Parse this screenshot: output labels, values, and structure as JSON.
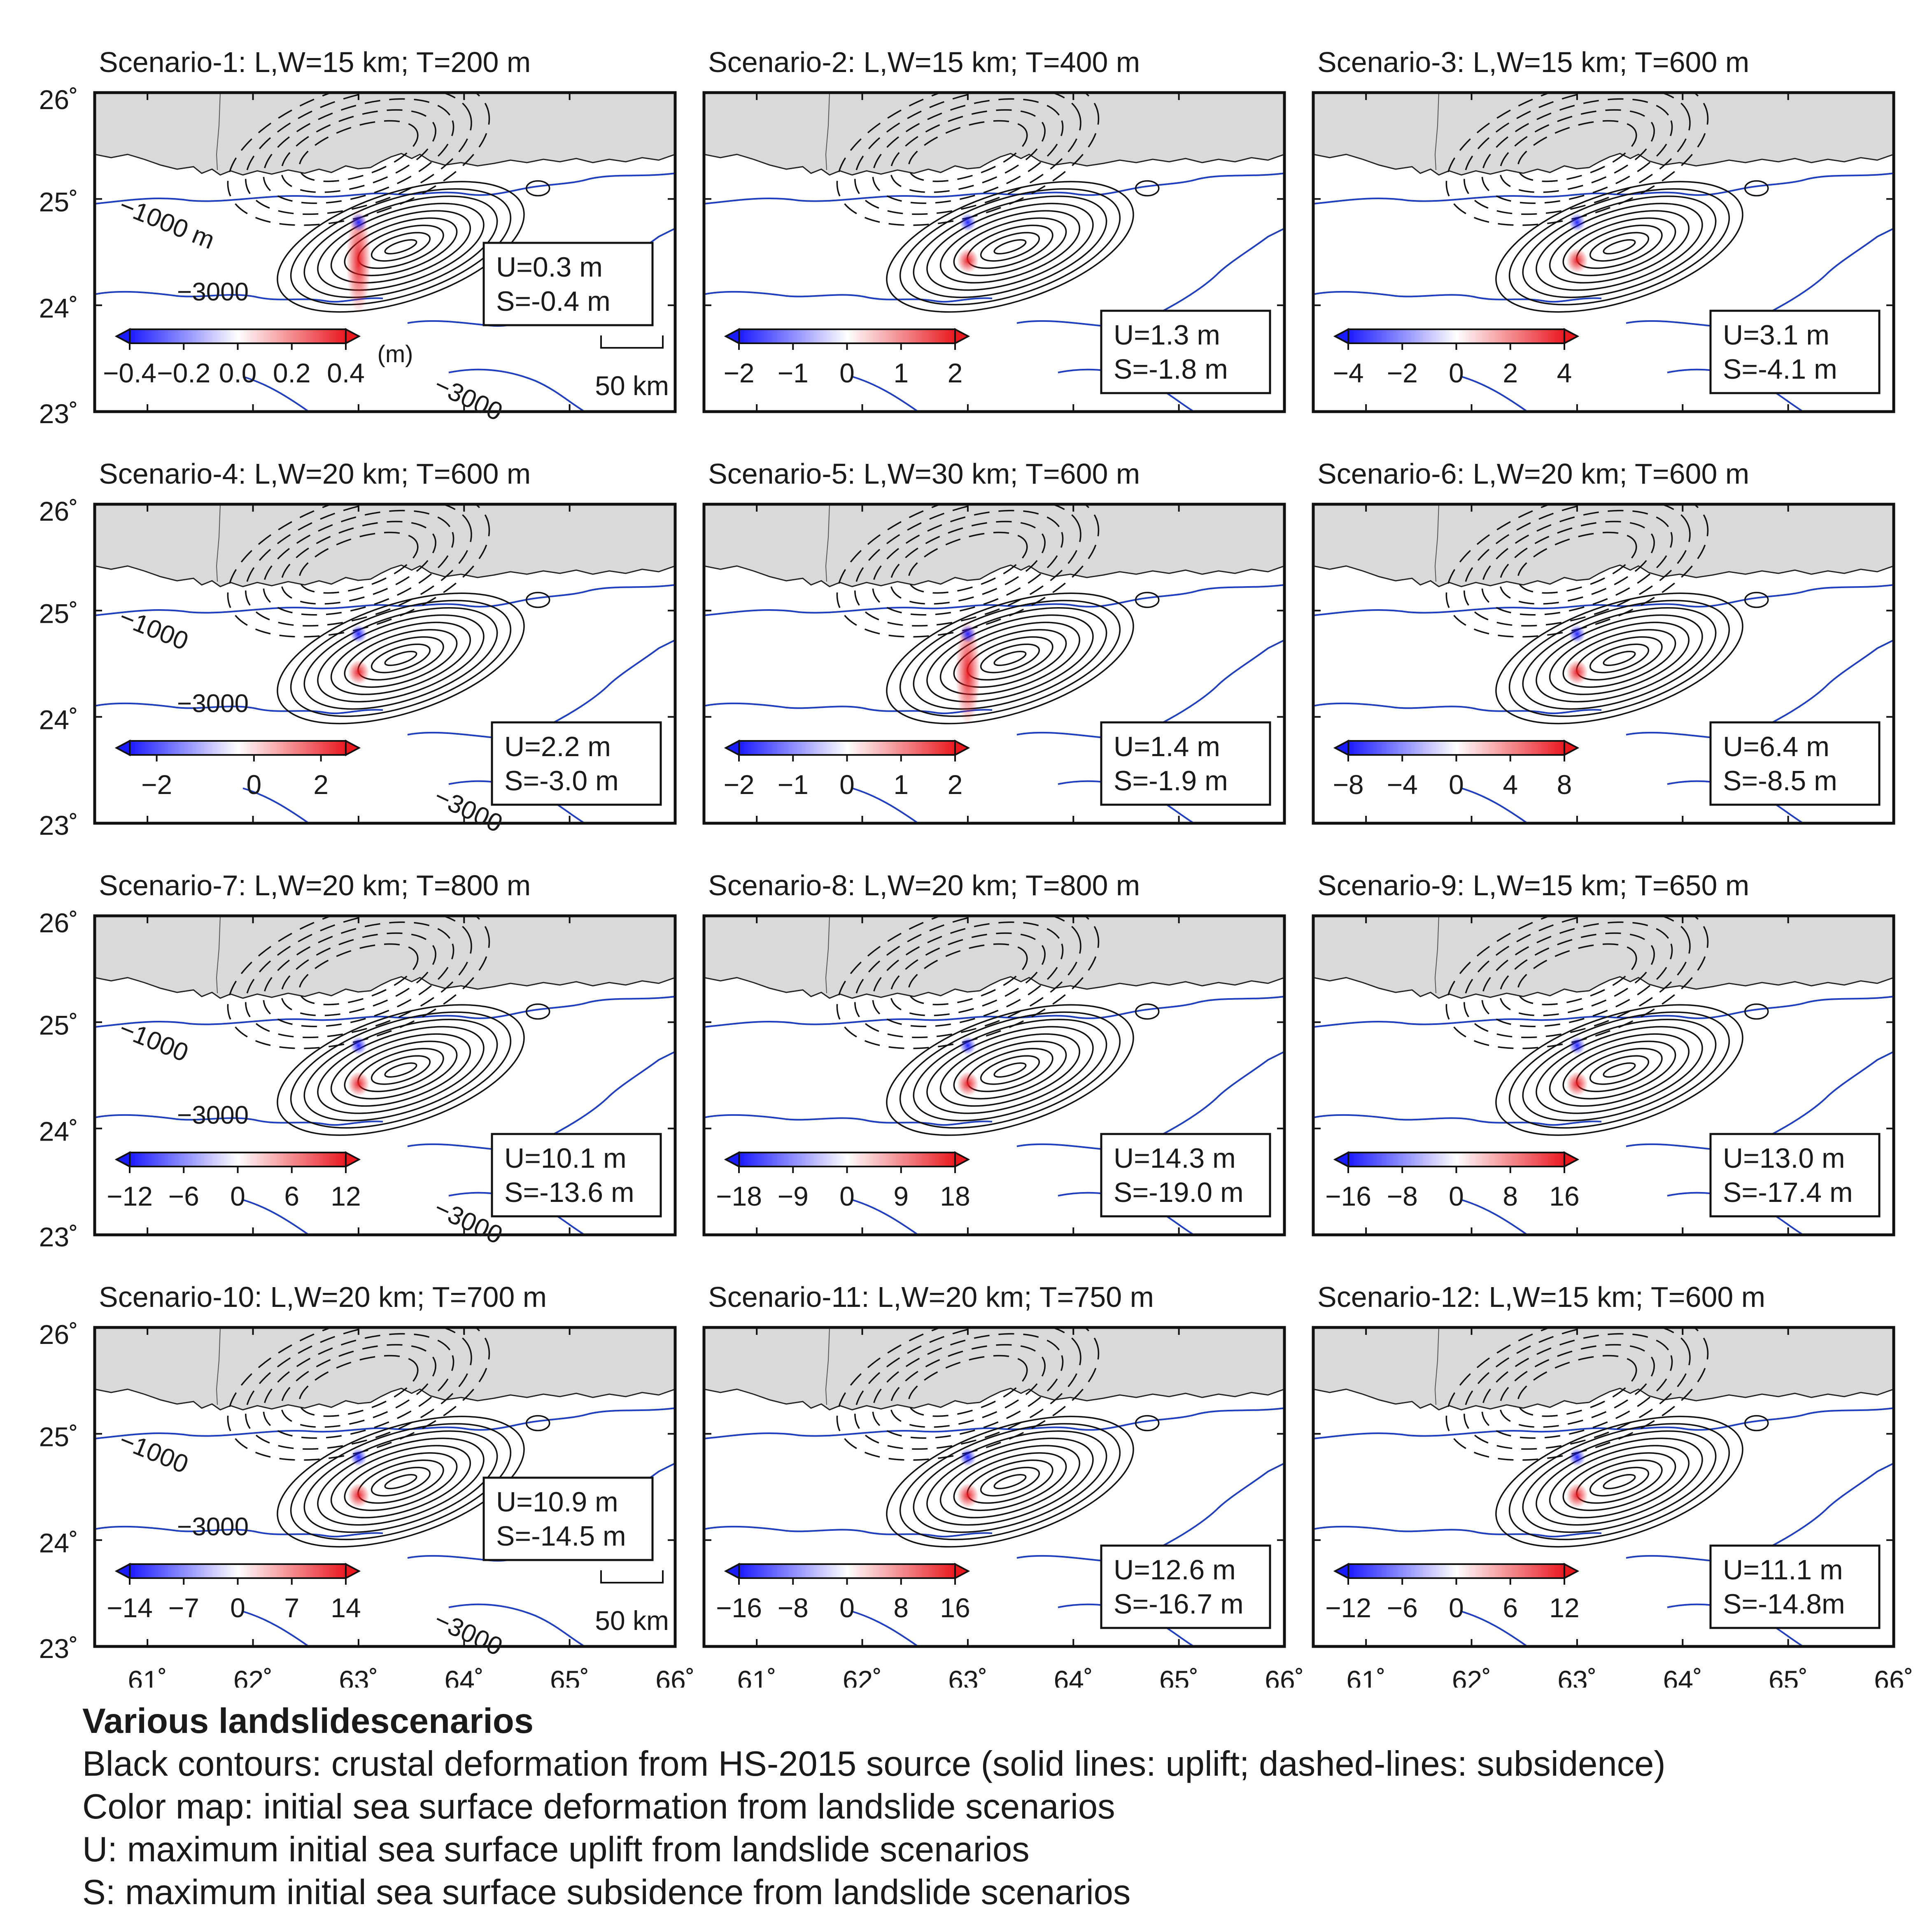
{
  "axes": {
    "lat_ticks": [
      {
        "value": 26,
        "label": "26˚"
      },
      {
        "value": 25,
        "label": "25˚"
      },
      {
        "value": 24,
        "label": "24˚"
      },
      {
        "value": 23,
        "label": "23˚"
      }
    ],
    "lon_ticks": [
      {
        "value": 61,
        "label": "61˚"
      },
      {
        "value": 62,
        "label": "62˚"
      },
      {
        "value": 63,
        "label": "63˚"
      },
      {
        "value": 64,
        "label": "64˚"
      },
      {
        "value": 65,
        "label": "65˚"
      },
      {
        "value": 66,
        "label": "66˚"
      }
    ],
    "lon_range": [
      60.5,
      66
    ],
    "lat_range": [
      23,
      26
    ]
  },
  "colors": {
    "land": "#d9d9d9",
    "bathymetry": "#1f3fbf",
    "contour": "#111111",
    "uplift": "#e8191f",
    "subsidence": "#1a1aff"
  },
  "panels": [
    {
      "title": "Scenario-1: L,W=15 km; T=200 m",
      "ticks": [
        "−0.4",
        "−0.2",
        "0.0",
        "0.2",
        "0.4"
      ],
      "unit": "(m)",
      "U": "U=0.3 m",
      "S": "S=-0.4 m",
      "depth_labels": [
        "−1000 m",
        "−3000",
        "−3000"
      ],
      "scale": "50 km"
    },
    {
      "title": "Scenario-2: L,W=15 km; T=400 m",
      "ticks": [
        "−2",
        "−1",
        "0",
        "1",
        "2"
      ],
      "U": "U=1.3 m",
      "S": "S=-1.8 m"
    },
    {
      "title": "Scenario-3: L,W=15 km; T=600 m",
      "ticks": [
        "−4",
        "−2",
        "0",
        "2",
        "4"
      ],
      "U": "U=3.1 m",
      "S": "S=-4.1 m"
    },
    {
      "title": "Scenario-4: L,W=20 km; T=600 m",
      "ticks": [
        "−2",
        "0",
        "2"
      ],
      "U": "U=2.2 m",
      "S": "S=-3.0 m",
      "depth_labels": [
        "−1000",
        "−3000",
        "−3000"
      ]
    },
    {
      "title": "Scenario-5: L,W=30 km; T=600 m",
      "ticks": [
        "−2",
        "−1",
        "0",
        "1",
        "2"
      ],
      "U": "U=1.4 m",
      "S": "S=-1.9 m"
    },
    {
      "title": "Scenario-6: L,W=20 km; T=600 m",
      "ticks": [
        "−8",
        "−4",
        "0",
        "4",
        "8"
      ],
      "U": "U=6.4 m",
      "S": "S=-8.5 m"
    },
    {
      "title": "Scenario-7: L,W=20 km; T=800 m",
      "ticks": [
        "−12",
        "−6",
        "0",
        "6",
        "12"
      ],
      "U": "U=10.1 m",
      "S": "S=-13.6 m",
      "depth_labels": [
        "−1000",
        "−3000",
        "−3000"
      ]
    },
    {
      "title": "Scenario-8: L,W=20 km; T=800 m",
      "ticks": [
        "−18",
        "−9",
        "0",
        "9",
        "18"
      ],
      "U": "U=14.3 m",
      "S": "S=-19.0 m"
    },
    {
      "title": "Scenario-9: L,W=15 km; T=650 m",
      "ticks": [
        "−16",
        "−8",
        "0",
        "8",
        "16"
      ],
      "U": "U=13.0 m",
      "S": "S=-17.4 m"
    },
    {
      "title": "Scenario-10: L,W=20 km; T=700 m",
      "ticks": [
        "−14",
        "−7",
        "0",
        "7",
        "14"
      ],
      "U": "U=10.9 m",
      "S": "S=-14.5 m",
      "depth_labels": [
        "−1000",
        "−3000",
        "−3000"
      ],
      "scale": "50 km"
    },
    {
      "title": "Scenario-11: L,W=20 km; T=750 m",
      "ticks": [
        "−16",
        "−8",
        "0",
        "8",
        "16"
      ],
      "U": "U=12.6 m",
      "S": "S=-16.7 m"
    },
    {
      "title": "Scenario-12: L,W=15 km; T=600 m",
      "ticks": [
        "−12",
        "−6",
        "0",
        "6",
        "12"
      ],
      "U": "U=11.1 m",
      "S": "S=-14.8m"
    }
  ],
  "caption": {
    "title": "Various landslidescenarios",
    "lines": [
      "Black contours: crustal deformation from HS-2015 source (solid lines: uplift; dashed-lines: subsidence)",
      "Color map: initial sea surface deformation from landslide scenarios",
      "U: maximum initial sea surface uplift from landslide scenarios",
      "S: maximum initial sea surface subsidence from landslide scenarios"
    ]
  }
}
